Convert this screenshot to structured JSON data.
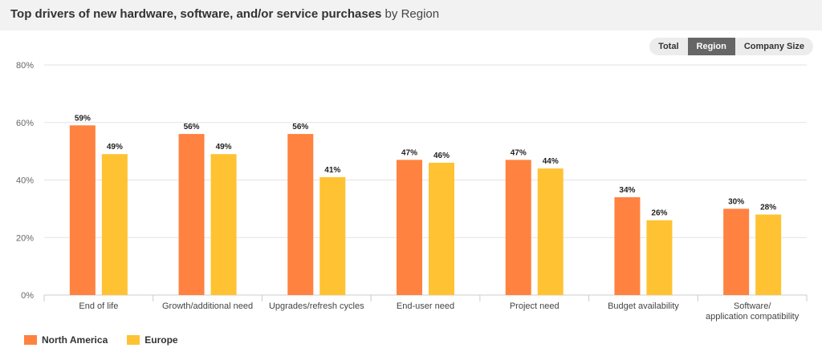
{
  "title": {
    "main": "Top drivers of new hardware, software, and/or service purchases",
    "suffix": " by Region"
  },
  "toggle": [
    {
      "label": "Total",
      "active": false
    },
    {
      "label": "Region",
      "active": true
    },
    {
      "label": "Company Size",
      "active": false
    }
  ],
  "chart_data": {
    "type": "bar",
    "categories": [
      "End of life",
      "Growth/additional need",
      "Upgrades/refresh cycles",
      "End-user need",
      "Project need",
      "Budget availability",
      "Software/application compatibility"
    ],
    "series": [
      {
        "name": "North America",
        "color": "#ff8240",
        "values": [
          59,
          56,
          56,
          47,
          47,
          34,
          30
        ]
      },
      {
        "name": "Europe",
        "color": "#ffc233",
        "values": [
          49,
          49,
          41,
          46,
          44,
          26,
          28
        ]
      }
    ],
    "ylim": [
      0,
      80
    ],
    "yticks": [
      "0%",
      "20%",
      "40%",
      "60%",
      "80%"
    ],
    "value_suffix": "%",
    "legend_position": "bottom-left",
    "grid": true
  }
}
